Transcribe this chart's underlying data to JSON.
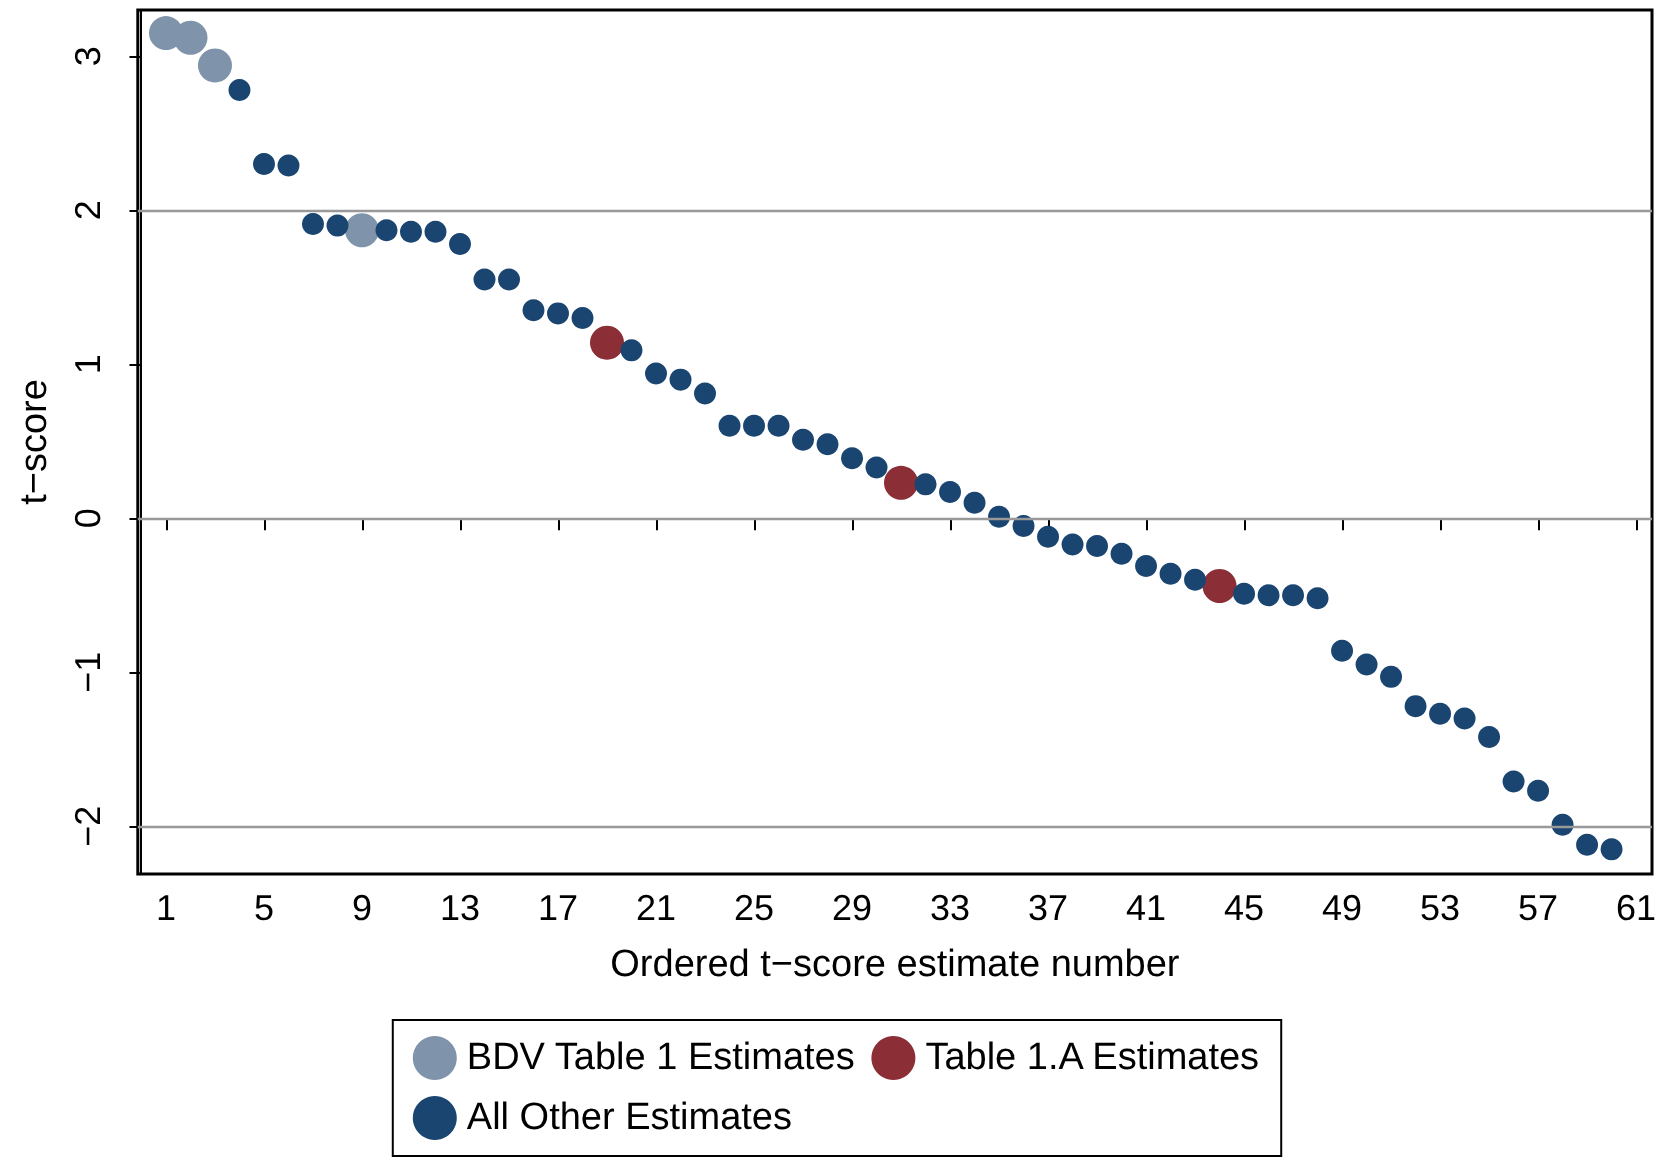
{
  "chart_data": {
    "type": "scatter",
    "xlabel": "Ordered t−score estimate number",
    "ylabel": "t−score",
    "xlim": [
      -0.15,
      61.65
    ],
    "xticks": [
      1,
      5,
      9,
      13,
      17,
      21,
      25,
      29,
      33,
      37,
      41,
      45,
      49,
      53,
      57,
      61
    ],
    "ylim": [
      -2.31,
      3.3
    ],
    "yticks": [
      -2,
      -1,
      0,
      1,
      2,
      3
    ],
    "grid": false,
    "legend": "bottom",
    "marker": "circle",
    "ref_lines": [
      {
        "axis": "y",
        "value": 2,
        "label": null,
        "color": "#999999"
      },
      {
        "axis": "y",
        "value": 0,
        "label": null,
        "color": "#999999"
      },
      {
        "axis": "y",
        "value": -2,
        "label": null,
        "color": "#999999"
      }
    ],
    "series": [
      {
        "name": "BDV Table 1 Estimates",
        "color": "#7f93aa",
        "x": [
          1,
          2,
          3,
          9
        ],
        "values": [
          3.15,
          3.12,
          2.94,
          1.87
        ]
      },
      {
        "name": "Table 1.A Estimates",
        "color": "#8b2e35",
        "x": [
          19,
          31,
          44
        ],
        "values": [
          1.14,
          0.23,
          -0.44
        ]
      },
      {
        "name": "All Other Estimates",
        "color": "#1a4571",
        "x": [
          4,
          5,
          6,
          7,
          8,
          10,
          11,
          12,
          13,
          14,
          15,
          16,
          17,
          18,
          20,
          21,
          22,
          23,
          24,
          25,
          26,
          27,
          28,
          29,
          30,
          32,
          33,
          34,
          35,
          36,
          37,
          38,
          39,
          40,
          41,
          42,
          43,
          45,
          46,
          47,
          48,
          49,
          50,
          51,
          52,
          53,
          54,
          55,
          56,
          57,
          58,
          59,
          60
        ],
        "values": [
          2.78,
          2.3,
          2.29,
          1.91,
          1.9,
          1.87,
          1.86,
          1.86,
          1.78,
          1.55,
          1.55,
          1.35,
          1.33,
          1.3,
          1.09,
          0.94,
          0.9,
          0.81,
          0.6,
          0.6,
          0.6,
          0.51,
          0.48,
          0.39,
          0.33,
          0.22,
          0.17,
          0.1,
          0.01,
          -0.05,
          -0.12,
          -0.17,
          -0.18,
          -0.23,
          -0.31,
          -0.36,
          -0.4,
          -0.49,
          -0.5,
          -0.5,
          -0.52,
          -0.86,
          -0.95,
          -1.03,
          -1.22,
          -1.27,
          -1.3,
          -1.42,
          -1.71,
          -1.77,
          -1.99,
          -2.12,
          -2.15
        ]
      }
    ]
  }
}
